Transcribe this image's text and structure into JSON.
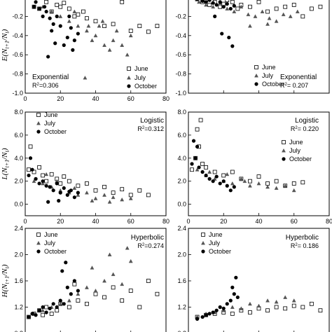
{
  "chart_data": [
    {
      "type": "scatter",
      "panel": "top-left",
      "ylabel": "E(Nt+1/Nt)",
      "ylim": [
        -1.0,
        0.0
      ],
      "yticks": [
        "-1.0",
        "-0.8",
        "-0.6",
        "-0.4",
        "-0.2",
        ""
      ],
      "xlim": [
        0,
        80
      ],
      "xticks": [
        "0",
        "20",
        "40",
        "60",
        "80"
      ],
      "model": "Exponential",
      "r2": "R²=0.306",
      "legend": [
        "June",
        "July",
        "October"
      ],
      "series": [
        {
          "name": "June",
          "x": [
            5,
            8,
            12,
            15,
            20,
            25,
            28,
            30,
            35,
            40,
            45,
            50,
            55,
            60,
            65,
            70,
            75,
            18,
            22,
            33
          ],
          "y": [
            -0.1,
            -0.12,
            -0.05,
            -0.15,
            -0.1,
            -0.12,
            -0.2,
            -0.18,
            -0.22,
            -0.25,
            -0.3,
            -0.28,
            -0.05,
            -0.35,
            -0.3,
            -0.36,
            -0.3,
            -0.08,
            -0.06,
            -0.15
          ]
        },
        {
          "name": "July",
          "x": [
            10,
            15,
            20,
            25,
            30,
            35,
            38,
            40,
            42,
            45,
            48,
            50,
            52,
            55,
            58,
            60,
            28,
            34,
            36,
            44
          ],
          "y": [
            -0.1,
            -0.15,
            -0.2,
            -0.25,
            -0.3,
            -0.35,
            -0.45,
            -0.4,
            -0.3,
            -0.5,
            -0.55,
            -0.45,
            -0.35,
            -0.5,
            -0.6,
            -0.4,
            -0.15,
            -0.84,
            -0.3,
            -0.25
          ]
        },
        {
          "name": "October",
          "x": [
            5,
            8,
            10,
            12,
            14,
            15,
            16,
            18,
            20,
            22,
            24,
            25,
            26,
            28,
            30,
            6,
            11,
            13,
            17,
            27
          ],
          "y": [
            -0.1,
            -0.12,
            -0.2,
            -0.15,
            -0.22,
            -0.35,
            -0.28,
            -0.2,
            -0.3,
            -0.5,
            -0.42,
            -0.2,
            -0.32,
            -0.45,
            -0.38,
            -0.05,
            -0.1,
            -0.62,
            -0.48,
            -0.55
          ]
        }
      ]
    },
    {
      "type": "scatter",
      "panel": "top-right",
      "ylabel": "",
      "ylim": [
        -1.0,
        0.0
      ],
      "yticks": [
        "-1.0",
        "-0.8",
        "-0.6",
        "-0.4",
        "-0.2",
        ""
      ],
      "xlim": [
        0,
        80
      ],
      "xticks": [
        "",
        "",
        "",
        "",
        ""
      ],
      "model": "Exponential",
      "r2": "R²= 0.207",
      "legend": [
        "June",
        "July",
        "October"
      ],
      "series": [
        {
          "name": "June",
          "x": [
            5,
            8,
            10,
            12,
            15,
            18,
            20,
            22,
            25,
            28,
            30,
            35,
            40,
            45,
            50,
            55,
            60,
            65,
            70,
            75
          ],
          "y": [
            -0.02,
            -0.05,
            -0.03,
            -0.08,
            -0.05,
            -0.1,
            -0.07,
            -0.03,
            -0.05,
            -0.12,
            -0.08,
            -0.1,
            -0.05,
            -0.15,
            -0.12,
            -0.1,
            -0.08,
            -0.2,
            -0.12,
            -0.1
          ]
        },
        {
          "name": "July",
          "x": [
            6,
            10,
            14,
            18,
            22,
            26,
            30,
            34,
            38,
            42,
            46,
            50,
            54,
            58,
            62,
            35,
            45
          ],
          "y": [
            -0.05,
            -0.08,
            -0.1,
            -0.06,
            -0.12,
            -0.15,
            -0.1,
            -0.18,
            -0.2,
            -0.15,
            -0.22,
            -0.25,
            -0.18,
            -0.2,
            -0.15,
            -0.3,
            -0.28
          ]
        },
        {
          "name": "October",
          "x": [
            5,
            8,
            10,
            12,
            14,
            16,
            18,
            20,
            22,
            24,
            26,
            15,
            19,
            23,
            25
          ],
          "y": [
            -0.02,
            -0.04,
            -0.05,
            -0.03,
            -0.06,
            -0.08,
            -0.05,
            -0.1,
            -0.07,
            -0.12,
            -0.09,
            -0.2,
            -0.38,
            -0.42,
            -0.51
          ]
        }
      ]
    },
    {
      "type": "scatter",
      "panel": "middle-left",
      "ylabel": "L(Nt+1/Nt)",
      "ylim": [
        -1.0,
        8.0
      ],
      "yticks": [
        "0.0",
        "2.0",
        "4.0",
        "6.0",
        "8.0"
      ],
      "xlim": [
        0,
        80
      ],
      "xticks": [
        "0",
        "20",
        "40",
        "60",
        "80"
      ],
      "model": "Logistic",
      "r2": "R²=0.312",
      "legend": [
        "June",
        "July",
        "October"
      ],
      "series": [
        {
          "name": "June",
          "x": [
            2,
            5,
            8,
            10,
            12,
            15,
            18,
            20,
            22,
            25,
            30,
            35,
            40,
            45,
            50,
            55,
            60,
            65,
            70,
            3
          ],
          "y": [
            3.0,
            2.8,
            3.2,
            2.5,
            2.0,
            2.6,
            2.2,
            1.8,
            2.4,
            2.0,
            1.6,
            1.8,
            1.2,
            1.5,
            1.0,
            1.3,
            0.8,
            1.2,
            0.8,
            5.0
          ]
        },
        {
          "name": "July",
          "x": [
            5,
            10,
            15,
            20,
            25,
            30,
            35,
            40,
            45,
            50,
            55,
            60,
            12,
            18,
            28,
            38,
            48
          ],
          "y": [
            2.0,
            1.8,
            1.5,
            1.2,
            1.0,
            0.8,
            1.0,
            0.5,
            0.8,
            0.6,
            0.4,
            0.5,
            2.6,
            2.0,
            1.4,
            0.3,
            0.2
          ]
        },
        {
          "name": "October",
          "x": [
            2,
            4,
            6,
            8,
            10,
            12,
            14,
            16,
            18,
            20,
            22,
            24,
            26,
            28,
            30,
            3,
            13,
            19,
            25
          ],
          "y": [
            2.5,
            3.0,
            2.2,
            1.8,
            2.0,
            1.6,
            1.5,
            1.2,
            1.8,
            1.0,
            1.4,
            0.8,
            1.2,
            0.6,
            1.0,
            4.0,
            0.2,
            0.3,
            1.1
          ]
        }
      ]
    },
    {
      "type": "scatter",
      "panel": "middle-right",
      "ylabel": "",
      "ylim": [
        -1.0,
        8.0
      ],
      "yticks": [
        "0.0",
        "2.0",
        "4.0",
        "6.0",
        "8.0"
      ],
      "xlim": [
        0,
        80
      ],
      "xticks": [
        "0",
        "20",
        "40",
        "60",
        "80"
      ],
      "model": "Logistic",
      "r2": "R²= 0.220",
      "legend": [
        "June",
        "July",
        "October"
      ],
      "series": [
        {
          "name": "June",
          "x": [
            2,
            4,
            6,
            8,
            10,
            15,
            20,
            25,
            30,
            35,
            40,
            45,
            50,
            55,
            60,
            65,
            5,
            7
          ],
          "y": [
            3.0,
            4.0,
            5.0,
            3.5,
            3.2,
            2.8,
            2.5,
            2.8,
            2.2,
            2.0,
            2.4,
            1.8,
            2.0,
            1.6,
            1.8,
            1.9,
            6.5,
            7.3
          ]
        },
        {
          "name": "July",
          "x": [
            5,
            10,
            15,
            20,
            25,
            30,
            35,
            40,
            45,
            50,
            55,
            60,
            12,
            22,
            32
          ],
          "y": [
            3.0,
            2.5,
            2.2,
            2.0,
            1.8,
            2.2,
            1.6,
            1.8,
            1.5,
            1.4,
            1.6,
            1.2,
            2.8,
            2.6,
            2.0
          ]
        },
        {
          "name": "October",
          "x": [
            2,
            4,
            6,
            8,
            10,
            12,
            14,
            16,
            18,
            20,
            22,
            24,
            26,
            3,
            5
          ],
          "y": [
            3.5,
            4.0,
            3.2,
            2.8,
            2.5,
            2.2,
            2.0,
            2.4,
            1.8,
            2.0,
            1.6,
            1.2,
            1.5,
            5.5,
            5.0
          ]
        }
      ]
    },
    {
      "type": "scatter",
      "panel": "bottom-left",
      "ylabel": "H(Nt+1/Nt)",
      "ylim": [
        0.8,
        2.4
      ],
      "yticks": [
        "0.8",
        "1.2",
        "1.6",
        "2.0",
        "2.4"
      ],
      "xlim": [
        0,
        80
      ],
      "xticks": [
        "",
        "",
        "",
        "",
        ""
      ],
      "model": "Hyperbolic",
      "r2": "R²=0.274",
      "legend": [
        "June",
        "July",
        "October"
      ],
      "series": [
        {
          "name": "June",
          "x": [
            2,
            5,
            8,
            10,
            12,
            15,
            18,
            20,
            25,
            30,
            35,
            40,
            45,
            50,
            55,
            60,
            65,
            70,
            75,
            28
          ],
          "y": [
            1.05,
            1.1,
            1.15,
            1.08,
            1.2,
            1.1,
            1.15,
            1.25,
            1.2,
            1.3,
            1.25,
            1.4,
            1.35,
            1.5,
            1.3,
            1.45,
            1.2,
            1.6,
            1.4,
            1.55
          ]
        },
        {
          "name": "July",
          "x": [
            5,
            10,
            15,
            20,
            25,
            30,
            35,
            40,
            45,
            50,
            55,
            60,
            38,
            48,
            58
          ],
          "y": [
            1.1,
            1.15,
            1.2,
            1.25,
            1.3,
            1.4,
            1.5,
            1.45,
            1.6,
            1.7,
            1.55,
            1.9,
            1.8,
            2.0,
            2.1
          ]
        },
        {
          "name": "October",
          "x": [
            2,
            4,
            6,
            8,
            10,
            12,
            14,
            16,
            18,
            20,
            22,
            24,
            26,
            28,
            30,
            23,
            21
          ],
          "y": [
            1.05,
            1.1,
            1.08,
            1.15,
            1.2,
            1.12,
            1.18,
            1.25,
            1.2,
            1.3,
            1.25,
            1.5,
            1.4,
            1.6,
            1.45,
            1.88,
            1.75
          ]
        }
      ]
    },
    {
      "type": "scatter",
      "panel": "bottom-right",
      "ylabel": "",
      "ylim": [
        0.8,
        2.4
      ],
      "yticks": [
        "0.8",
        "1.2",
        "1.6",
        "2.0",
        "2.4"
      ],
      "xlim": [
        0,
        80
      ],
      "xticks": [
        "",
        "",
        "",
        "",
        ""
      ],
      "model": "Hyperbolic",
      "r2": "R²= 0.186",
      "legend": [
        "June",
        "July",
        "October"
      ],
      "series": [
        {
          "name": "June",
          "x": [
            5,
            10,
            15,
            20,
            25,
            30,
            35,
            40,
            45,
            50,
            55,
            60,
            65,
            70,
            75
          ],
          "y": [
            1.05,
            1.08,
            1.1,
            1.12,
            1.1,
            1.15,
            1.12,
            1.18,
            1.15,
            1.2,
            1.18,
            1.22,
            1.2,
            1.25,
            1.15
          ]
        },
        {
          "name": "July",
          "x": [
            5,
            10,
            15,
            20,
            25,
            30,
            35,
            40,
            45,
            50,
            55,
            60
          ],
          "y": [
            1.05,
            1.1,
            1.12,
            1.15,
            1.2,
            1.18,
            1.25,
            1.22,
            1.3,
            1.28,
            1.35,
            1.3
          ]
        },
        {
          "name": "October",
          "x": [
            5,
            8,
            10,
            12,
            14,
            16,
            18,
            20,
            22,
            24,
            26,
            28,
            25,
            27
          ],
          "y": [
            1.02,
            1.05,
            1.08,
            1.1,
            1.12,
            1.15,
            1.2,
            1.18,
            1.25,
            1.3,
            1.4,
            1.35,
            1.5,
            1.65
          ]
        }
      ]
    }
  ]
}
